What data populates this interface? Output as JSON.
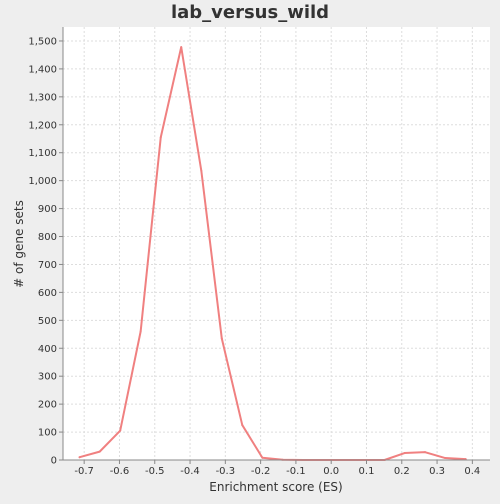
{
  "chart_data": {
    "type": "line",
    "title": "lab_versus_wild",
    "xlabel": "Enrichment score (ES)",
    "ylabel": "# of gene sets",
    "xlim": [
      -0.76,
      0.45
    ],
    "ylim": [
      0,
      1550
    ],
    "x_ticks": [
      -0.7,
      -0.6,
      -0.5,
      -0.4,
      -0.3,
      -0.2,
      -0.1,
      0.0,
      0.1,
      0.2,
      0.3,
      0.4
    ],
    "x_tick_labels": [
      "-0.7",
      "-0.6",
      "-0.5",
      "-0.4",
      "-0.3",
      "-0.2",
      "-0.1",
      "0.0",
      "0.1",
      "0.2",
      "0.3",
      "0.4"
    ],
    "y_ticks": [
      0,
      100,
      200,
      300,
      400,
      500,
      600,
      700,
      800,
      900,
      1000,
      1100,
      1200,
      1300,
      1400,
      1500
    ],
    "y_tick_labels": [
      "0",
      "100",
      "200",
      "300",
      "400",
      "500",
      "600",
      "700",
      "800",
      "900",
      "1,000",
      "1,100",
      "1,200",
      "1,300",
      "1,400",
      "1,500"
    ],
    "grid": true,
    "series": [
      {
        "color": "#f08080",
        "x": [
          -0.713,
          -0.656,
          -0.598,
          -0.54,
          -0.483,
          -0.425,
          -0.368,
          -0.31,
          -0.252,
          -0.195,
          -0.137,
          -0.08,
          -0.022,
          0.036,
          0.093,
          0.151,
          0.208,
          0.266,
          0.323,
          0.381
        ],
        "y": [
          10,
          30,
          105,
          460,
          1155,
          1478,
          1035,
          435,
          125,
          8,
          1,
          0,
          0,
          0,
          0,
          0,
          25,
          28,
          7,
          3
        ]
      }
    ]
  }
}
